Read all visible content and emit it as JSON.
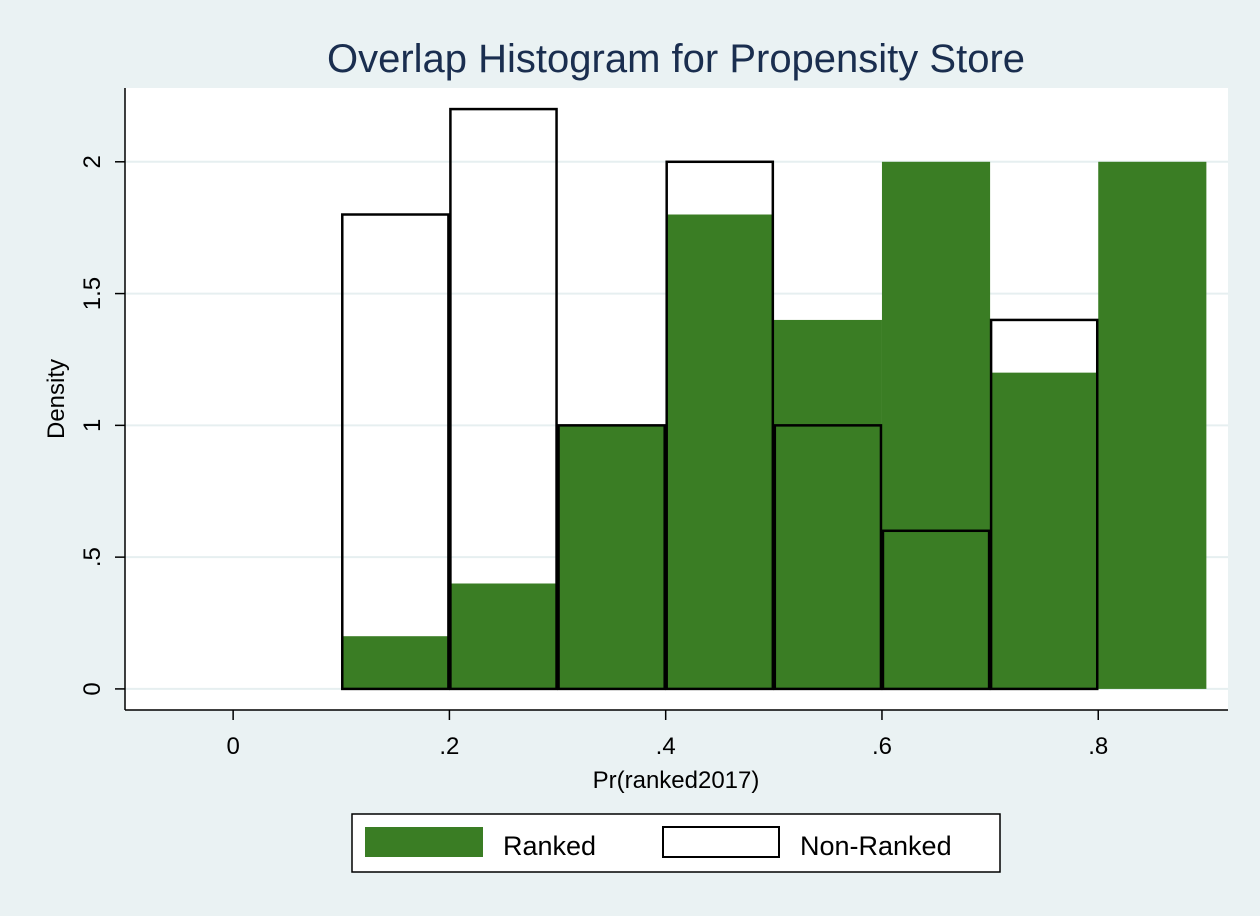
{
  "chart_data": {
    "type": "bar",
    "title": "Overlap Histogram for Propensity Store",
    "xlabel": "Pr(ranked2017)",
    "ylabel": "Density",
    "xlim": [
      -0.1,
      0.92
    ],
    "ylim": [
      -0.08,
      2.28
    ],
    "xticks": [
      0,
      0.2,
      0.4,
      0.6,
      0.8
    ],
    "xtick_labels": [
      "0",
      ".2",
      ".4",
      ".6",
      ".8"
    ],
    "yticks": [
      0,
      0.5,
      1,
      1.5,
      2
    ],
    "ytick_labels": [
      "0",
      ".5",
      "1",
      "1.5",
      "2"
    ],
    "grid": true,
    "legend_position": "bottom",
    "bin_width": 0.1,
    "series": [
      {
        "name": "Ranked",
        "style": "filled",
        "color": "#3a7d24",
        "bins": [
          {
            "x0": 0.1,
            "x1": 0.2,
            "value": 0.2
          },
          {
            "x0": 0.2,
            "x1": 0.3,
            "value": 0.4
          },
          {
            "x0": 0.3,
            "x1": 0.4,
            "value": 1.0
          },
          {
            "x0": 0.4,
            "x1": 0.5,
            "value": 1.8
          },
          {
            "x0": 0.5,
            "x1": 0.6,
            "value": 1.4
          },
          {
            "x0": 0.6,
            "x1": 0.7,
            "value": 2.0
          },
          {
            "x0": 0.7,
            "x1": 0.8,
            "value": 1.2
          },
          {
            "x0": 0.8,
            "x1": 0.9,
            "value": 2.0
          }
        ]
      },
      {
        "name": "Non-Ranked",
        "style": "outline",
        "color": "#000000",
        "bins": [
          {
            "x0": 0.1,
            "x1": 0.2,
            "value": 1.8
          },
          {
            "x0": 0.2,
            "x1": 0.3,
            "value": 2.2
          },
          {
            "x0": 0.3,
            "x1": 0.4,
            "value": 1.0
          },
          {
            "x0": 0.4,
            "x1": 0.5,
            "value": 2.0
          },
          {
            "x0": 0.5,
            "x1": 0.6,
            "value": 1.0
          },
          {
            "x0": 0.6,
            "x1": 0.7,
            "value": 0.6
          },
          {
            "x0": 0.7,
            "x1": 0.8,
            "value": 1.4
          }
        ]
      }
    ]
  },
  "colors": {
    "background": "#eaf2f3",
    "plot_area": "#ffffff",
    "grid": "#e6eff0",
    "title": "#1a2e4f"
  }
}
